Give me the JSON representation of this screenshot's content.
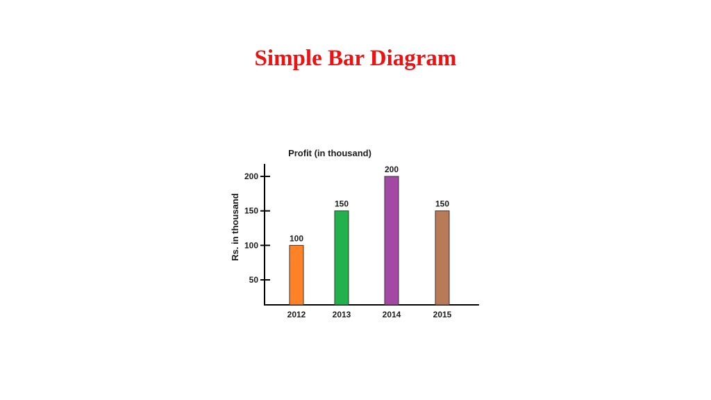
{
  "slide": {
    "title": "Simple Bar Diagram"
  },
  "chart_data": {
    "type": "bar",
    "title": "Profit (in thousand)",
    "xlabel": "",
    "ylabel": "Rs. in thousand",
    "categories": [
      "2012",
      "2013",
      "2014",
      "2015"
    ],
    "values": [
      100,
      150,
      200,
      150
    ],
    "data_labels": [
      "100",
      "150",
      "200",
      "150"
    ],
    "yticks": [
      50,
      100,
      150,
      200
    ],
    "ylim": [
      0,
      210
    ],
    "grid": false,
    "legend": "none",
    "colors": [
      "#ff8326",
      "#22b14c",
      "#a349a4",
      "#b97a57"
    ]
  }
}
